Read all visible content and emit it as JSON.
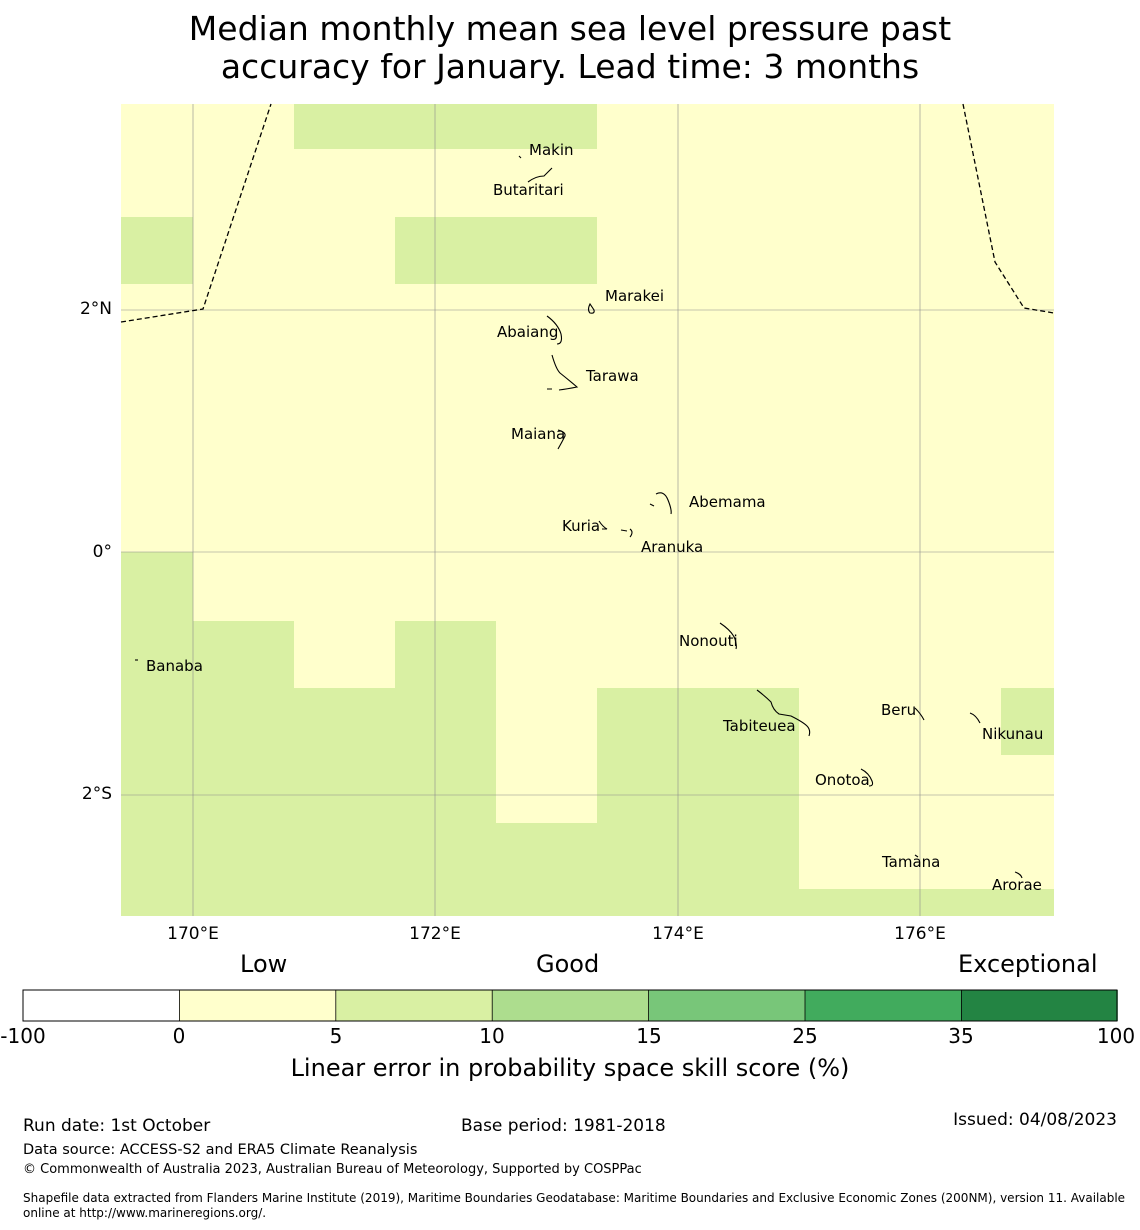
{
  "title": {
    "line1": "Median monthly mean sea level pressure past",
    "line2": "accuracy for January. Lead time: 3 months"
  },
  "map": {
    "lon_range": [
      169.4,
      177.1
    ],
    "lat_range": [
      -3.0,
      3.7
    ],
    "lat_labels": [
      "2°N",
      "0°",
      "2°S"
    ],
    "lon_labels": [
      "170°E",
      "172°E",
      "174°E",
      "176°E"
    ],
    "colors": {
      "low": "#ffffcc",
      "low_good": "#d9f0a3",
      "border": "#000000",
      "grid": "#8c8c8c"
    },
    "places": [
      {
        "name": "Makin"
      },
      {
        "name": "Butaritari"
      },
      {
        "name": "Marakei"
      },
      {
        "name": "Abaiang"
      },
      {
        "name": "Tarawa"
      },
      {
        "name": "Maiana"
      },
      {
        "name": "Abemama"
      },
      {
        "name": "Kuria"
      },
      {
        "name": "Aranuka"
      },
      {
        "name": "Banaba"
      },
      {
        "name": "Nonouti"
      },
      {
        "name": "Tabiteuea"
      },
      {
        "name": "Beru"
      },
      {
        "name": "Nikunau"
      },
      {
        "name": "Onotoa"
      },
      {
        "name": "Tamana"
      },
      {
        "name": "Arorae"
      }
    ]
  },
  "colorbar": {
    "categories": [
      "Low",
      "Good",
      "Exceptional"
    ],
    "ticks": [
      "-100",
      "0",
      "5",
      "10",
      "15",
      "25",
      "35",
      "100"
    ],
    "colors": [
      "#ffffff",
      "#ffffcc",
      "#d9f0a3",
      "#addd8e",
      "#78c679",
      "#41ab5d",
      "#238443"
    ],
    "caption": "Linear error in probability space skill score (%)"
  },
  "footer": {
    "run_date": "Run date: 1st October",
    "base_period": "Base period: 1981-2018",
    "issued": "Issued: 04/08/2023",
    "data_source": "Data source: ACCESS-S2 and ERA5 Climate Reanalysis",
    "copyright": "© Commonwealth of Australia 2023, Australian Bureau of Meteorology, Supported by COSPPac",
    "shapefile_line1": "Shapefile data extracted from Flanders Marine Institute (2019), Maritime Boundaries Geodatabase: Maritime Boundaries and Exclusive Economic Zones (200NM), version 11. Available",
    "shapefile_line2": "online at http://www.marineregions.org/."
  }
}
